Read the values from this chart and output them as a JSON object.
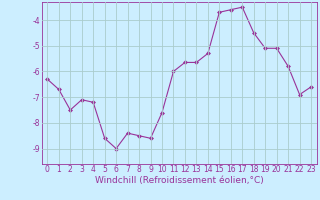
{
  "x": [
    0,
    1,
    2,
    3,
    4,
    5,
    6,
    7,
    8,
    9,
    10,
    11,
    12,
    13,
    14,
    15,
    16,
    17,
    18,
    19,
    20,
    21,
    22,
    23
  ],
  "y": [
    -6.3,
    -6.7,
    -7.5,
    -7.1,
    -7.2,
    -8.6,
    -9.0,
    -8.4,
    -8.5,
    -8.6,
    -7.6,
    -6.0,
    -5.65,
    -5.65,
    -5.3,
    -3.7,
    -3.6,
    -3.5,
    -4.5,
    -5.1,
    -5.1,
    -5.8,
    -6.9,
    -6.6
  ],
  "line_color": "#993399",
  "marker": "D",
  "marker_size": 2,
  "bg_color": "#cceeff",
  "grid_color": "#aacccc",
  "axis_color": "#993399",
  "xlabel": "Windchill (Refroidissement éolien,°C)",
  "ylim": [
    -9.6,
    -3.3
  ],
  "yticks": [
    -9,
    -8,
    -7,
    -6,
    -5,
    -4
  ],
  "xlim": [
    -0.5,
    23.5
  ],
  "xticks": [
    0,
    1,
    2,
    3,
    4,
    5,
    6,
    7,
    8,
    9,
    10,
    11,
    12,
    13,
    14,
    15,
    16,
    17,
    18,
    19,
    20,
    21,
    22,
    23
  ],
  "tick_fontsize": 5.5,
  "xlabel_fontsize": 6.5
}
